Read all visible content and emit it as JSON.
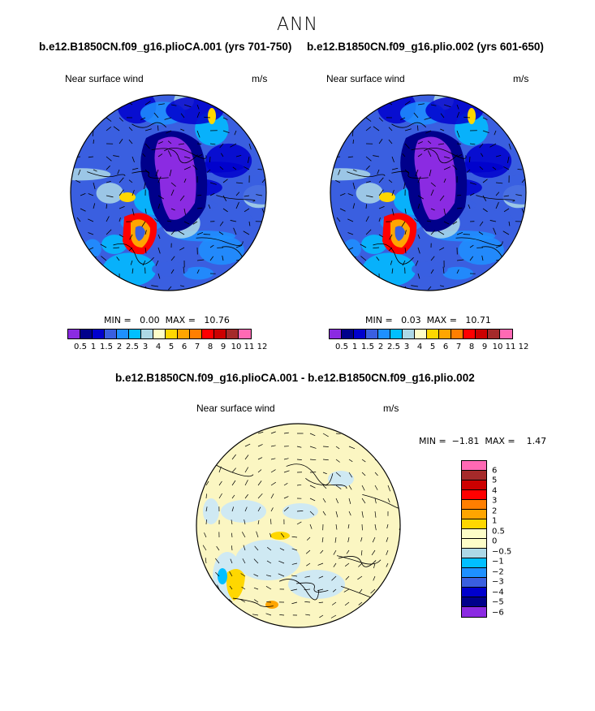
{
  "figure_title": "ANN",
  "panels": [
    {
      "title": "b.e12.B1850CN.f09_g16.plioCA.001 (yrs 701-750)",
      "variable_label": "Near surface wind",
      "units": "m/s",
      "min_max": "MIN =   0.00  MAX =   10.76",
      "colorbar_labels": [
        "0.5",
        "1",
        "1.5",
        "2",
        "2.5",
        "3",
        "4",
        "5",
        "6",
        "7",
        "8",
        "9",
        "10",
        "11",
        "12"
      ]
    },
    {
      "title": "b.e12.B1850CN.f09_g16.plio.002 (yrs 601-650)",
      "variable_label": "Near surface wind",
      "units": "m/s",
      "min_max": "MIN =   0.03  MAX =   10.71",
      "colorbar_labels": [
        "0.5",
        "1",
        "1.5",
        "2",
        "2.5",
        "3",
        "4",
        "5",
        "6",
        "7",
        "8",
        "9",
        "10",
        "11",
        "12"
      ]
    },
    {
      "title": "b.e12.B1850CN.f09_g16.plioCA.001 - b.e12.B1850CN.f09_g16.plio.002",
      "variable_label": "Near surface wind",
      "units": "m/s",
      "min_max": "MIN =  −1.81  MAX =    1.47",
      "colorbar_labels": [
        "6",
        "5",
        "4",
        "3",
        "2",
        "1",
        "0.5",
        "0",
        "−0.5",
        "−1",
        "−2",
        "−3",
        "−4",
        "−5",
        "−6"
      ]
    }
  ],
  "colors": {
    "abs_scale": [
      "#8b2be2",
      "#00008b",
      "#0000cd",
      "#3a5fe0",
      "#1e90ff",
      "#00bfff",
      "#add8e6",
      "#fdfdc8",
      "#ffd700",
      "#ffa500",
      "#ff7f00",
      "#ff0000",
      "#cc0000",
      "#a52a2a",
      "#ff69b4"
    ],
    "diff_scale": [
      "#ff69b4",
      "#a52a2a",
      "#cc0000",
      "#ff0000",
      "#ff7f00",
      "#ffa500",
      "#ffd700",
      "#fdfdc8",
      "#fdfdc8",
      "#add8e6",
      "#00bfff",
      "#1e90ff",
      "#3a5fe0",
      "#0000cd",
      "#00008b",
      "#8b2be2"
    ],
    "map_base_abs": "#3a5fe0",
    "map_base_diff": "#fbf6c2"
  }
}
